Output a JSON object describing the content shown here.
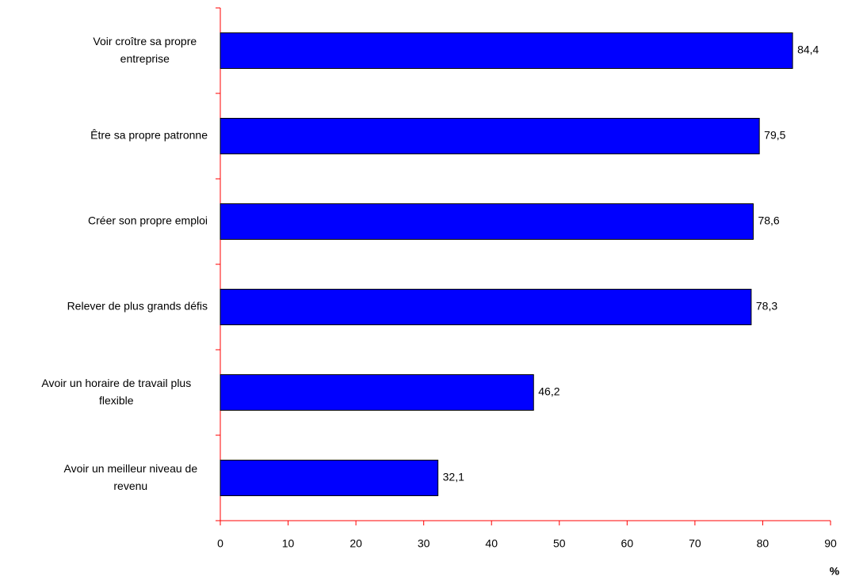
{
  "chart_data": {
    "type": "bar",
    "orientation": "horizontal",
    "categories": [
      "Voir croître sa propre entreprise",
      "Être sa propre patronne",
      "Créer son propre emploi",
      "Relever de plus grands défis",
      "Avoir un horaire de travail plus flexible",
      "Avoir un meilleur niveau de revenu"
    ],
    "values": [
      84.4,
      79.5,
      78.6,
      78.3,
      46.2,
      32.1
    ],
    "value_labels": [
      "84,4",
      "79,5",
      "78,6",
      "78,3",
      "46,2",
      "32,1"
    ],
    "color": "#0000ff",
    "axis_color": "#ff0000",
    "xlim": [
      0,
      90
    ],
    "xticks": [
      0,
      10,
      20,
      30,
      40,
      50,
      60,
      70,
      80,
      90
    ],
    "xlabel": "%",
    "grid": false
  }
}
